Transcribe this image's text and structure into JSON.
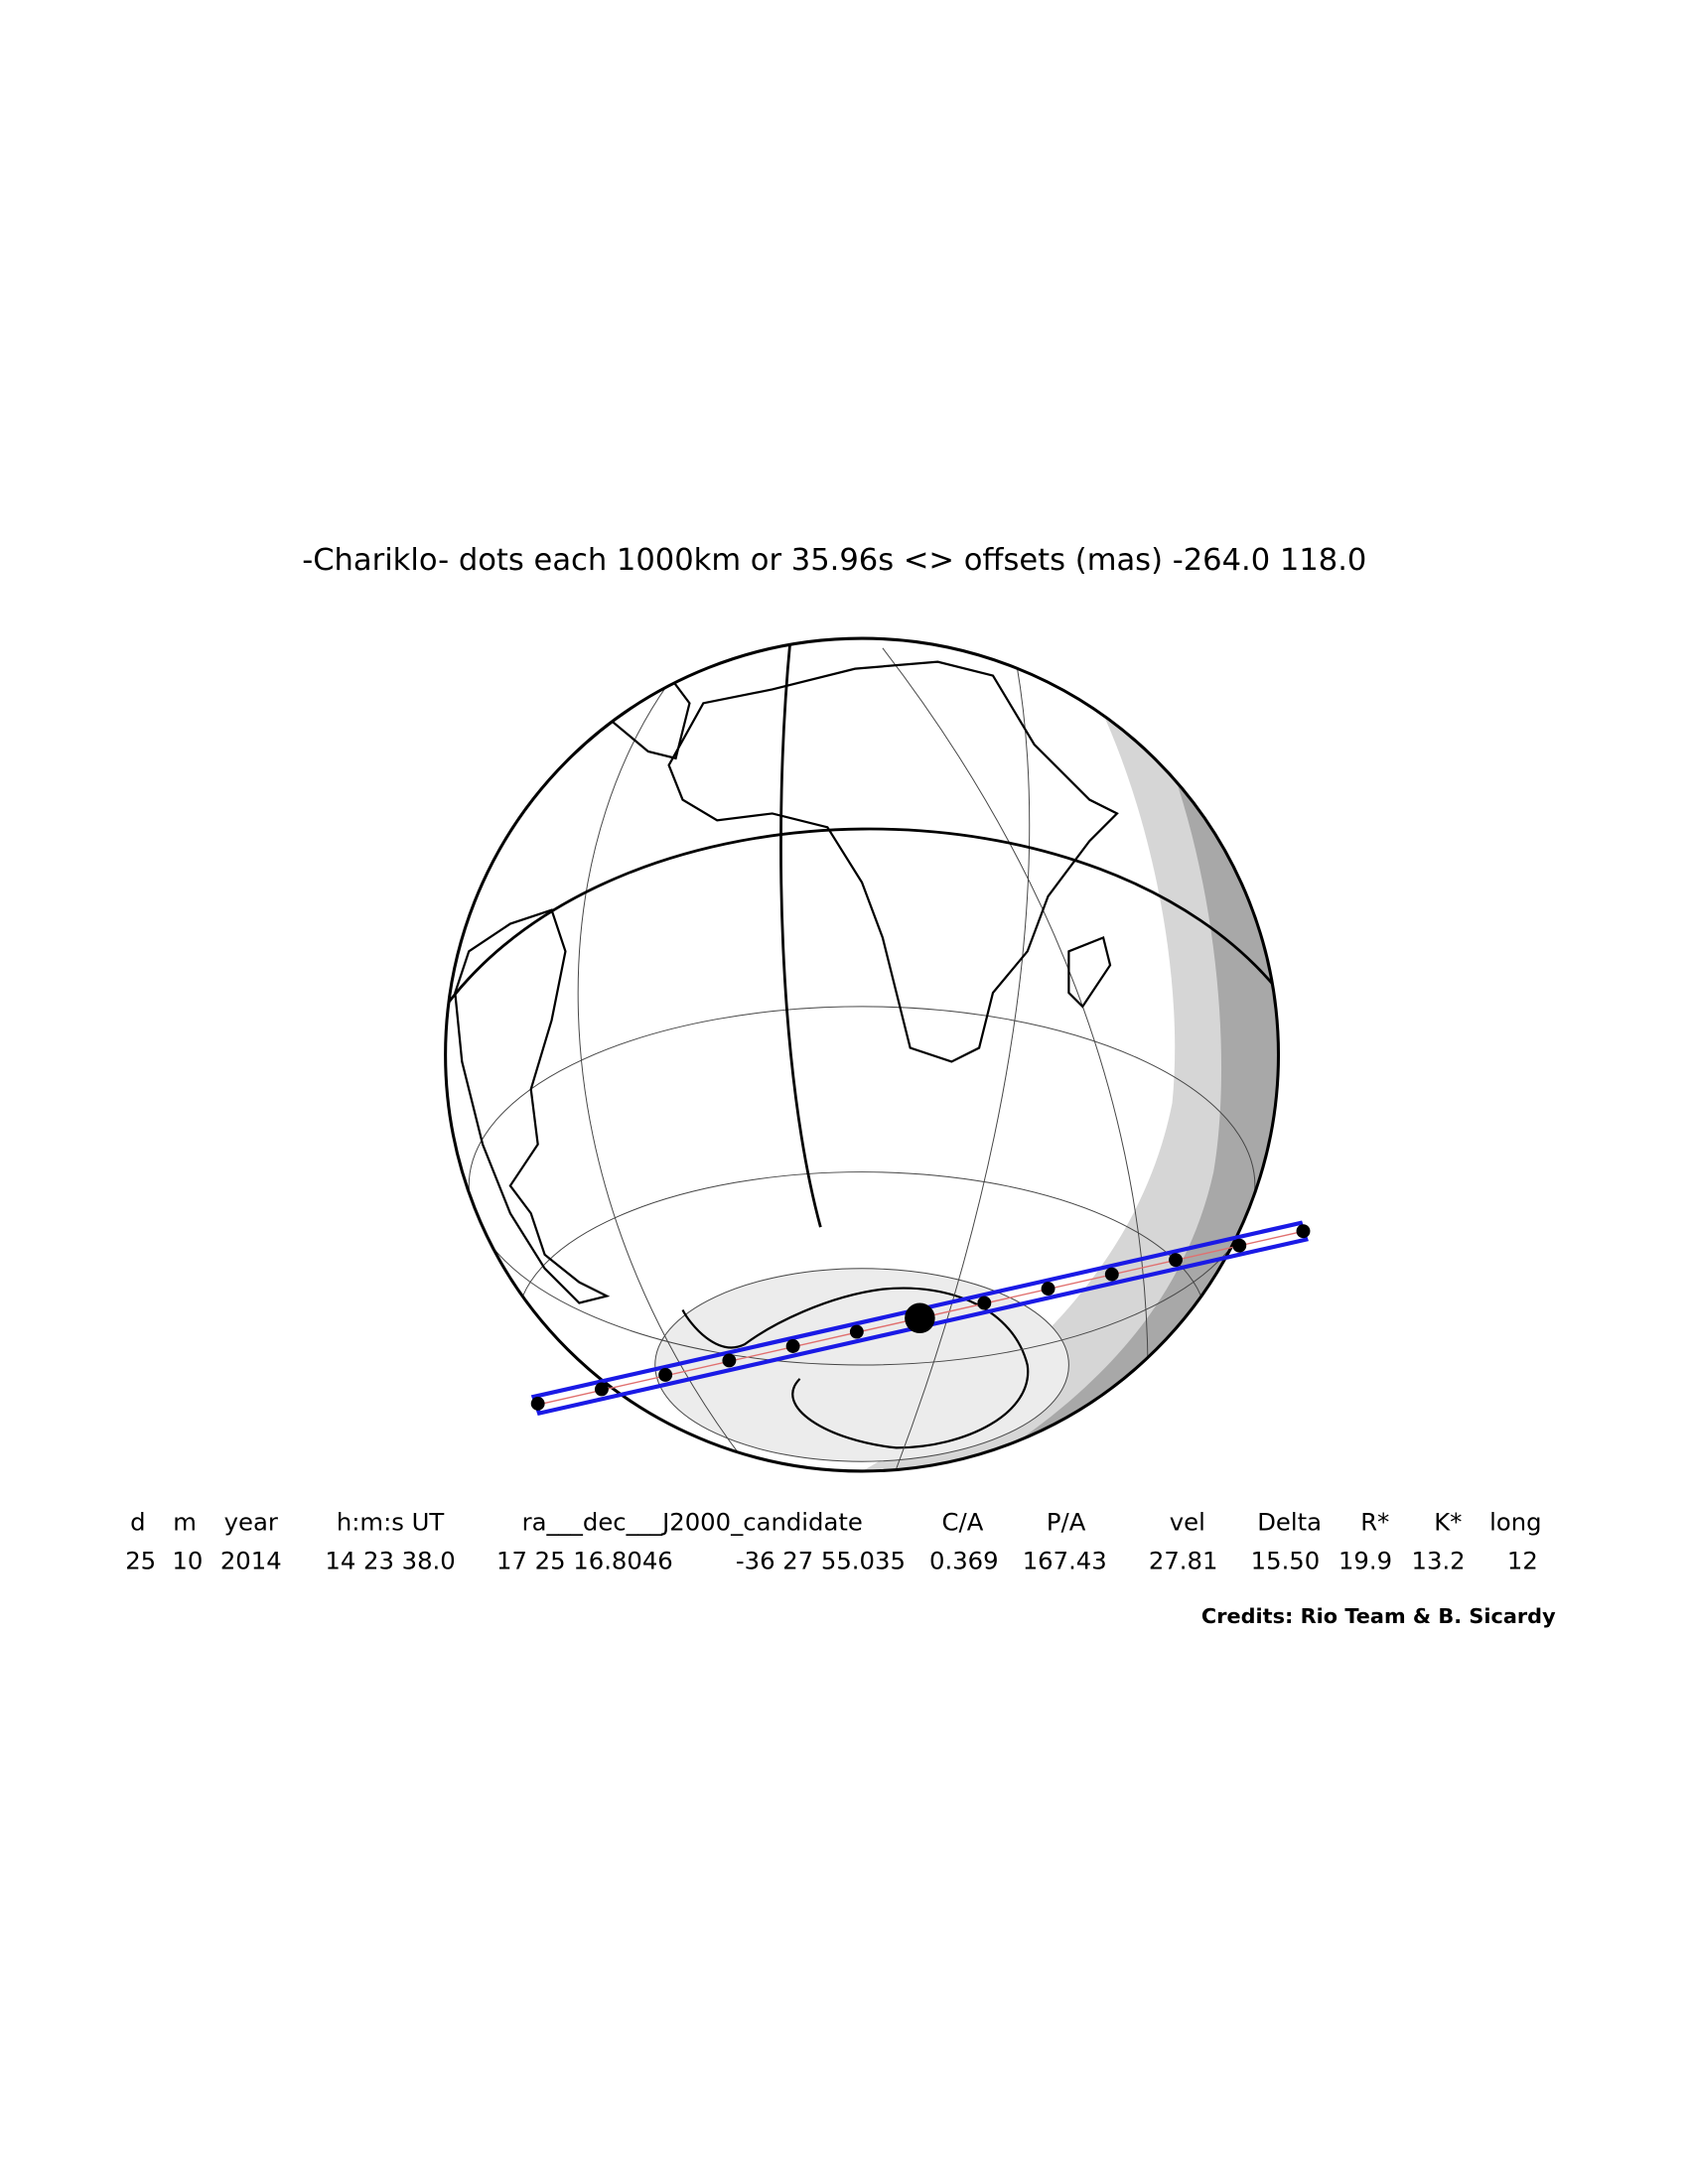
{
  "title": "-Chariklo- dots each 1000km or 35.96s <> offsets (mas) -264.0   118.0",
  "table": {
    "headers": [
      "d",
      "m",
      "year",
      "h:m:s UT",
      "ra___dec___J2000_candidate",
      "C/A",
      "P/A",
      "vel",
      "Delta",
      "R*",
      "K*",
      "long"
    ],
    "values": [
      "25",
      "10",
      "2014",
      "14 23 38.0",
      "17 25 16.8046",
      "-36 27 55.035",
      "0.369",
      "167.43",
      "27.81",
      "15.50",
      "19.9",
      "13.2",
      "12"
    ]
  },
  "credits": "Credits: Rio Team & B. Sicardy"
}
